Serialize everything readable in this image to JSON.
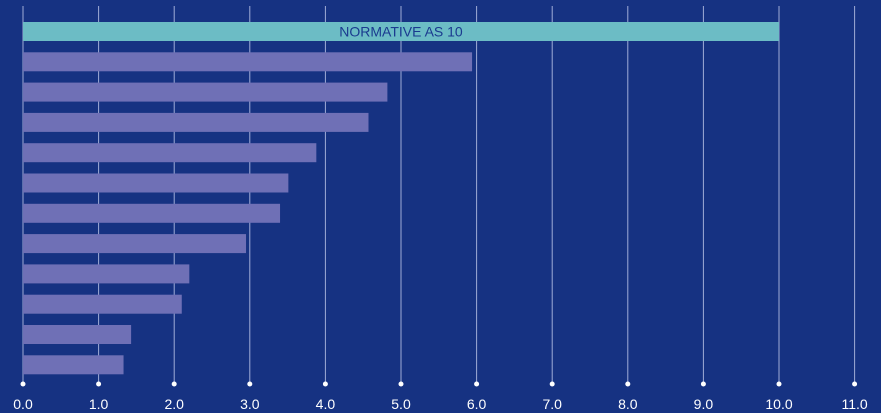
{
  "colors": {
    "background": "#163282",
    "grid": "#b9c2e6",
    "bar_default": "#6f70b6",
    "bar_highlight": "#6cbcc5",
    "bar_label": "#1a3a8f",
    "tick_text": "#ffffff"
  },
  "chart_data": {
    "type": "bar",
    "orientation": "horizontal",
    "title": "",
    "xlabel": "",
    "ylabel": "",
    "xlim": [
      0,
      11
    ],
    "x_ticks": [
      "0.0",
      "1.0",
      "2.0",
      "3.0",
      "4.0",
      "5.0",
      "6.0",
      "7.0",
      "8.0",
      "9.0",
      "10.0",
      "11.0"
    ],
    "grid": "vertical",
    "legend": "none",
    "values": [
      10.0,
      5.94,
      4.82,
      4.57,
      3.88,
      3.51,
      3.4,
      2.95,
      2.2,
      2.1,
      1.43,
      1.33
    ],
    "annotations": [
      {
        "bar_index": 0,
        "text": "NORMATIVE AS 10"
      }
    ]
  }
}
